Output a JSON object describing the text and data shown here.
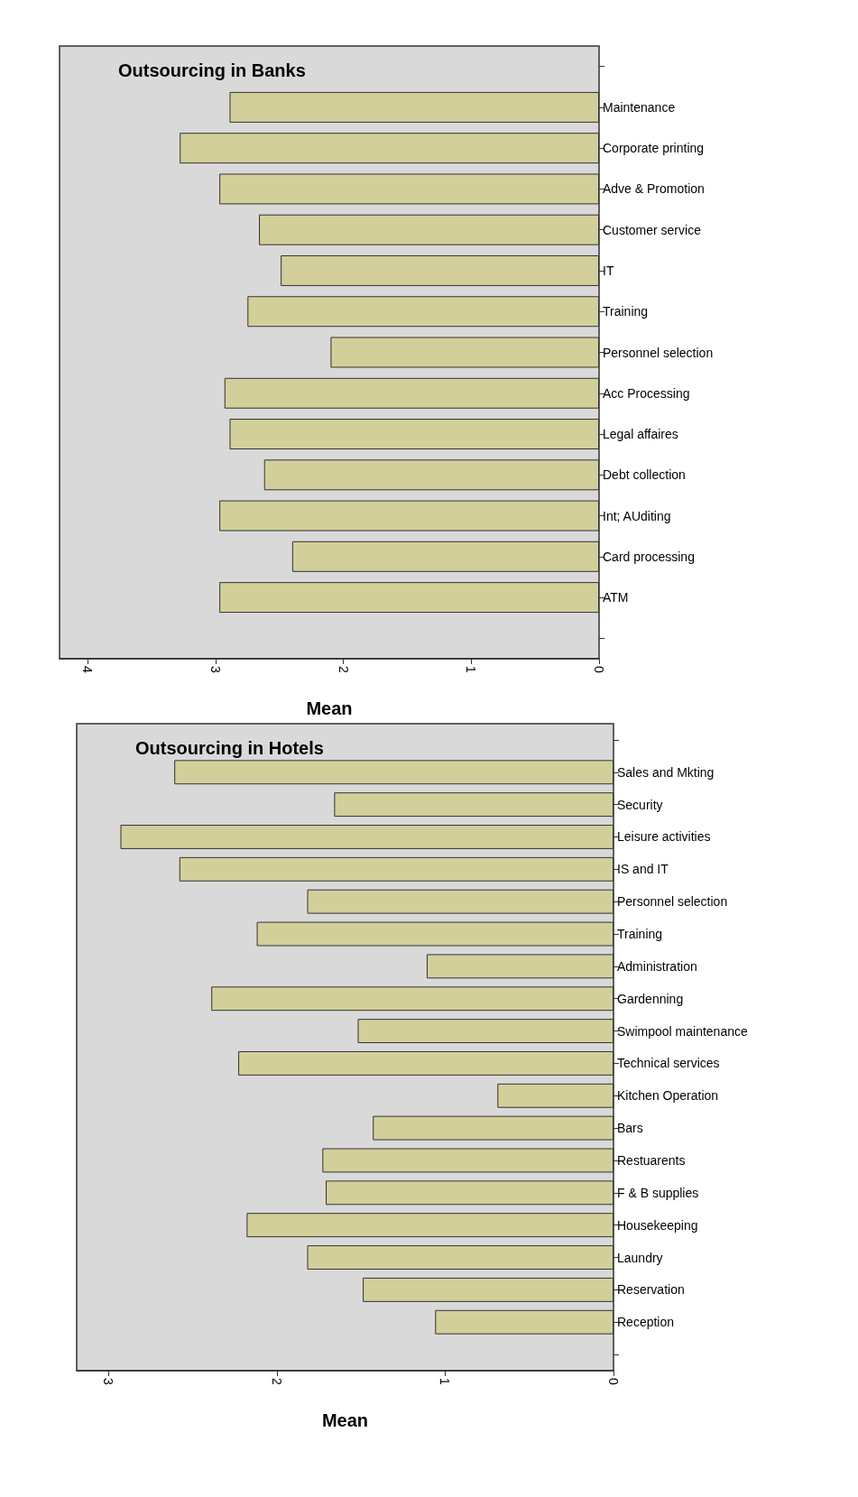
{
  "chart_data": [
    {
      "type": "bar",
      "orientation": "horizontal",
      "title": "Outsourcing in Banks",
      "xlabel": "Mean",
      "categories": [
        "Maintenance",
        "Corporate printing",
        "Adve & Promotion",
        "Customer service",
        "IT",
        "Training",
        "Personnel selection",
        "Acc Processing",
        "Legal affaires",
        "Debt collection",
        "Int; AUditing",
        "Card processing",
        "ATM"
      ],
      "values": [
        2.89,
        3.28,
        2.97,
        2.66,
        2.49,
        2.75,
        2.1,
        2.93,
        2.89,
        2.62,
        2.97,
        2.4,
        2.97
      ],
      "color": "#d3cf9a",
      "xlim": [
        4.22,
        0
      ],
      "xticks": [
        0,
        1,
        2,
        3,
        4
      ],
      "grid": false
    },
    {
      "type": "bar",
      "orientation": "horizontal",
      "title": "Outsourcing in Hotels",
      "xlabel": "Mean",
      "categories": [
        "Sales and Mkting",
        "Security",
        "Leisure activities",
        "IS and IT",
        "Personnel selection",
        "Training",
        "Administration",
        "Gardenning",
        "Swimpool maintenance",
        "Technical services",
        "Kitchen Operation",
        "Bars",
        "Restuarents",
        "F & B supplies",
        "Housekeeping",
        "Laundry",
        "Reservation",
        "Reception"
      ],
      "values": [
        2.61,
        1.66,
        2.93,
        2.58,
        1.82,
        2.12,
        1.11,
        2.39,
        1.52,
        2.23,
        0.69,
        1.43,
        1.73,
        1.71,
        2.18,
        1.82,
        1.49,
        1.06
      ],
      "color": "#d3cf9a",
      "xlim": [
        3.19,
        0
      ],
      "xticks": [
        0,
        1,
        2,
        3
      ],
      "grid": false
    }
  ]
}
